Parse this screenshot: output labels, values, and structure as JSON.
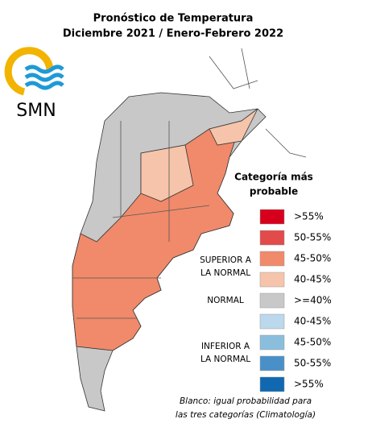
{
  "header": {
    "title_lines": [
      "Pronóstico de Temperatura",
      "Diciembre 2021 / Enero-Febrero 2022"
    ],
    "logo_text": "SMN"
  },
  "legend": {
    "title_lines": [
      "Categoría más",
      "probable"
    ],
    "groups": [
      {
        "label_lines": [
          "SUPERIOR A",
          "LA NORMAL"
        ],
        "entries": [
          {
            "label": ">55%",
            "color": "#d7001c"
          },
          {
            "label": "50-55%",
            "color": "#e34a4a"
          },
          {
            "label": "45-50%",
            "color": "#f08a6a"
          },
          {
            "label": "40-45%",
            "color": "#f6c4aa"
          }
        ]
      },
      {
        "label_lines": [
          "NORMAL"
        ],
        "entries": [
          {
            "label": ">=40%",
            "color": "#c8c8c8"
          }
        ]
      },
      {
        "label_lines": [
          "INFERIOR A",
          "LA NORMAL"
        ],
        "entries": [
          {
            "label": "40-45%",
            "color": "#bcd8ec"
          },
          {
            "label": "45-50%",
            "color": "#8bbedc"
          },
          {
            "label": "50-55%",
            "color": "#4a90c8"
          },
          {
            "label": ">55%",
            "color": "#1068b0"
          }
        ]
      }
    ]
  },
  "note_lines": [
    "Blanco: igual probabilidad para",
    "las tres categorías (Climatología)"
  ]
}
